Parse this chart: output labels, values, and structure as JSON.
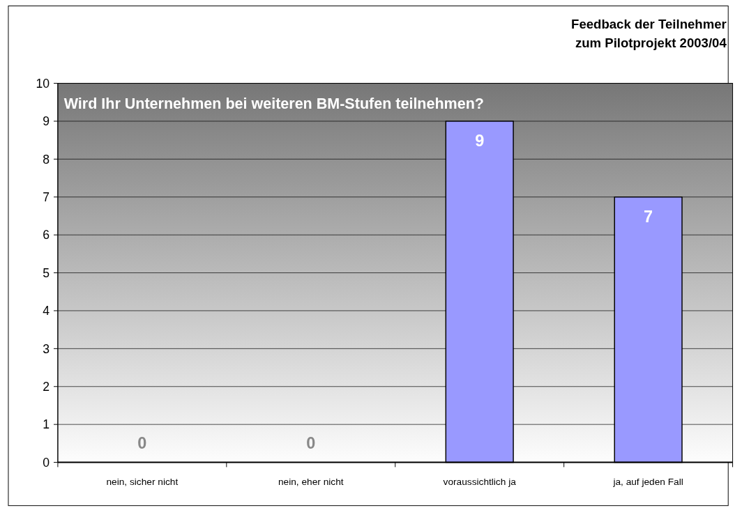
{
  "chart_data": {
    "type": "bar",
    "title": "Feedback der Teilnehmer\nzum Pilotprojekt 2003/04",
    "subtitle": "Wird Ihr Unternehmen bei weiteren BM-Stufen teilnehmen?",
    "categories": [
      "nein, sicher nicht",
      "nein, eher nicht",
      "voraussichtlich ja",
      "ja, auf jeden Fall"
    ],
    "values": [
      0,
      0,
      9,
      7
    ],
    "color": "#9999ff",
    "ylim": [
      0,
      10
    ],
    "yticks": [
      0,
      1,
      2,
      3,
      4,
      5,
      6,
      7,
      8,
      9,
      10
    ],
    "grid": "y",
    "data_labels": true
  }
}
